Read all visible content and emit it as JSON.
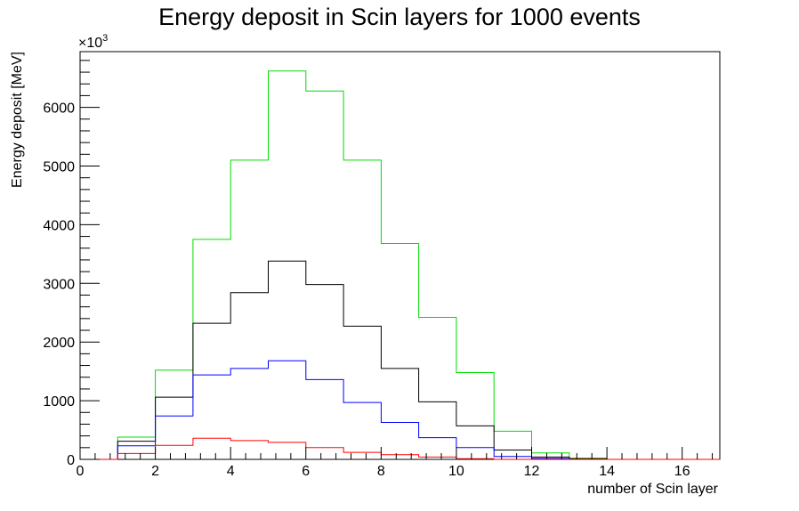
{
  "chart_data": {
    "type": "histogram-step",
    "title": "Energy deposit in Scin layers for 1000 events",
    "xlabel": "number of Scin layer",
    "ylabel": "Energy deposit [MeV]",
    "y_multiplier_label": "×10",
    "y_multiplier_exponent": "3",
    "xlim": [
      0,
      17
    ],
    "ylim": [
      0,
      6950
    ],
    "x_ticks": [
      0,
      2,
      4,
      6,
      8,
      10,
      12,
      14,
      16
    ],
    "y_ticks": [
      0,
      1000,
      2000,
      3000,
      4000,
      5000,
      6000
    ],
    "bin_edges": [
      0,
      1,
      2,
      3,
      4,
      5,
      6,
      7,
      8,
      9,
      10,
      11,
      12,
      13,
      14,
      15,
      16,
      17
    ],
    "series": [
      {
        "color": "#00dd00",
        "values": [
          0,
          380,
          1520,
          3750,
          5100,
          6620,
          6280,
          5100,
          3680,
          2420,
          1480,
          480,
          110,
          20,
          0,
          0,
          0
        ]
      },
      {
        "color": "#000000",
        "values": [
          0,
          310,
          1060,
          2320,
          2840,
          3380,
          2980,
          2270,
          1550,
          980,
          570,
          160,
          40,
          10,
          0,
          0,
          0
        ]
      },
      {
        "color": "#0000ff",
        "values": [
          0,
          230,
          740,
          1440,
          1550,
          1680,
          1360,
          970,
          630,
          370,
          200,
          50,
          15,
          0,
          0,
          0,
          0
        ]
      },
      {
        "color": "#ff0000",
        "values": [
          0,
          100,
          240,
          360,
          320,
          290,
          200,
          120,
          80,
          40,
          10,
          0,
          0,
          0,
          0,
          0,
          0
        ]
      }
    ]
  }
}
